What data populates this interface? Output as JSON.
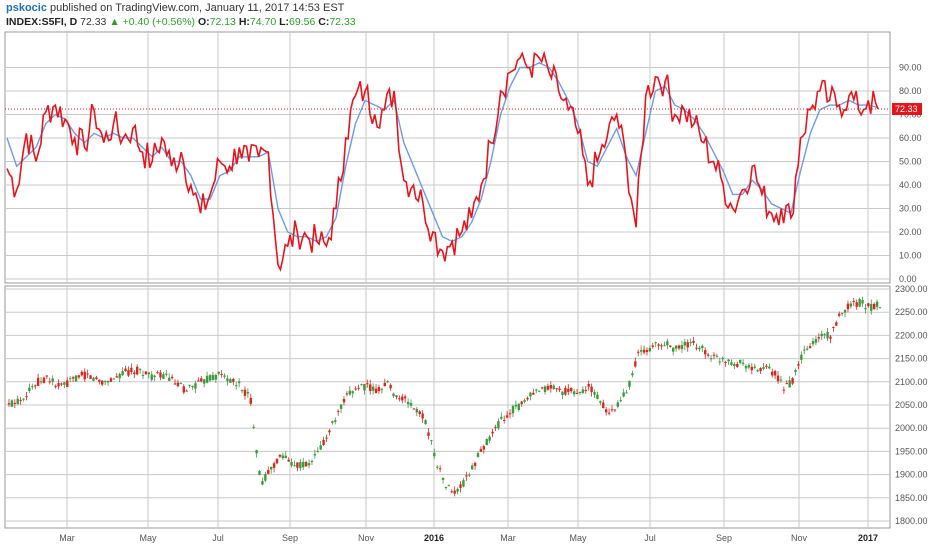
{
  "header": {
    "user": "pskocic",
    "published": "published on TradingView.com, January 11, 2017 14:53 EST",
    "symbol": "INDEX:S5FI, D",
    "last": "72.33",
    "change": "+0.40 (+0.56%)",
    "o_label": "O:",
    "o_value": "72.13",
    "h_label": "H:",
    "h_value": "74.70",
    "l_label": "L:",
    "l_value": "69.56",
    "c_label": "C:",
    "c_value": "72.33"
  },
  "colors": {
    "osc": "#e8141c",
    "ma": "#6e9be8",
    "up_candle": "#3c9a3c",
    "down_candle": "#d8281e",
    "grid": "#c8c8c8",
    "price_line": "#e8141c"
  },
  "icons": {
    "change_arrow": "triangle-up-icon"
  },
  "chart_data": [
    {
      "type": "line",
      "series": [
        {
          "values": [
            47,
            38,
            62,
            50,
            71,
            74,
            68,
            60,
            56,
            72,
            58,
            66,
            60,
            64,
            54,
            50,
            60,
            48,
            54,
            40,
            28,
            36,
            50,
            48,
            56,
            50,
            52,
            54,
            6,
            14,
            20,
            18,
            16,
            14,
            30,
            60,
            78,
            80,
            70,
            72,
            80,
            42,
            40,
            32,
            20,
            12,
            16,
            20,
            26,
            40,
            58,
            80,
            88,
            94,
            90,
            94,
            88,
            80,
            72,
            62,
            40,
            50,
            60,
            70,
            50,
            22,
            78,
            86,
            84,
            70,
            72,
            66,
            58,
            50,
            40,
            30,
            38,
            48,
            36,
            28,
            30,
            26,
            60,
            72,
            80,
            76,
            74,
            78,
            72,
            76,
            72.33
          ]
        },
        {
          "values": [
            60,
            48,
            52,
            56,
            66,
            70,
            68,
            62,
            58,
            62,
            60,
            62,
            60,
            60,
            56,
            52,
            56,
            50,
            50,
            44,
            34,
            34,
            44,
            46,
            52,
            52,
            52,
            54,
            30,
            20,
            18,
            18,
            16,
            18,
            26,
            48,
            66,
            76,
            74,
            72,
            76,
            58,
            48,
            38,
            28,
            18,
            16,
            18,
            24,
            34,
            50,
            70,
            82,
            90,
            90,
            92,
            90,
            84,
            76,
            66,
            50,
            48,
            56,
            64,
            52,
            44,
            62,
            80,
            82,
            74,
            72,
            68,
            62,
            54,
            46,
            36,
            36,
            42,
            38,
            32,
            30,
            28,
            46,
            62,
            72,
            74,
            74,
            76,
            74,
            74,
            73
          ]
        }
      ],
      "ylim": [
        0,
        100
      ],
      "yticks": [
        "0.00",
        "10.00",
        "20.00",
        "30.00",
        "40.00",
        "50.00",
        "60.00",
        "70.00",
        "80.00",
        "90.00"
      ],
      "last_value_label": "72.33"
    },
    {
      "type": "candlestick",
      "series": [
        {
          "values": [
            2050,
            2060,
            2080,
            2100,
            2110,
            2090,
            2095,
            2110,
            2115,
            2105,
            2100,
            2110,
            2120,
            2125,
            2120,
            2110,
            2115,
            2100,
            2085,
            2090,
            2100,
            2110,
            2115,
            2100,
            2090,
            2060,
            1880,
            1910,
            1940,
            1930,
            1920,
            1920,
            1950,
            1990,
            2030,
            2070,
            2090,
            2090,
            2080,
            2100,
            2070,
            2060,
            2040,
            2020,
            1940,
            1880,
            1860,
            1880,
            1920,
            1960,
            1990,
            2020,
            2040,
            2050,
            2070,
            2080,
            2090,
            2080,
            2080,
            2075,
            2090,
            2060,
            2030,
            2050,
            2090,
            2160,
            2170,
            2180,
            2180,
            2170,
            2180,
            2180,
            2165,
            2150,
            2150,
            2140,
            2140,
            2125,
            2130,
            2120,
            2090,
            2100,
            2160,
            2180,
            2200,
            2200,
            2250,
            2270,
            2270,
            2260,
            2268
          ]
        }
      ],
      "ylim": [
        1790,
        2310
      ],
      "yticks": [
        "1800.00",
        "1850.00",
        "1900.00",
        "1950.00",
        "2000.00",
        "2050.00",
        "2100.00",
        "2150.00",
        "2200.00",
        "2250.00",
        "2300.00"
      ]
    }
  ],
  "time_axis": {
    "labels": [
      "Mar",
      "May",
      "Jul",
      "Sep",
      "Nov",
      "2016",
      "Mar",
      "May",
      "Jul",
      "Sep",
      "Nov",
      "2017"
    ],
    "bold": [
      false,
      false,
      false,
      false,
      false,
      true,
      false,
      false,
      false,
      false,
      false,
      true
    ]
  }
}
